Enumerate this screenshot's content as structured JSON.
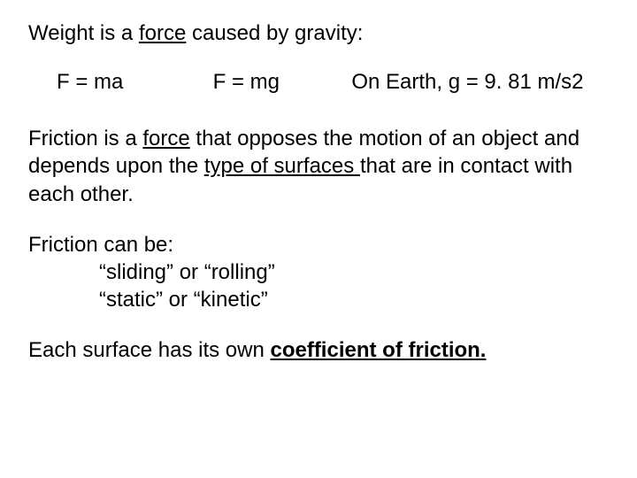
{
  "text_color": "#000000",
  "background_color": "#ffffff",
  "font_family": "Arial",
  "font_size_pt": 18,
  "p1": {
    "pre": "Weight is a ",
    "u": "force",
    "post": " caused by gravity:"
  },
  "formulas": {
    "f1": "F = ma",
    "f2": "F = mg",
    "g_note": "On Earth, g = 9. 81 m/s2"
  },
  "p2": {
    "s1a": "Friction is a ",
    "s1b": "force",
    "s1c": " that opposes the motion of an object and depends upon the ",
    "s2": "type of surfaces ",
    "s3": "that are in contact with each other."
  },
  "p3": {
    "lead": "Friction can be:",
    "l1": "“sliding” or “rolling”",
    "l2": "“static” or “kinetic”"
  },
  "p4": {
    "pre": "Each surface has its own ",
    "em": "coefficient of friction."
  }
}
